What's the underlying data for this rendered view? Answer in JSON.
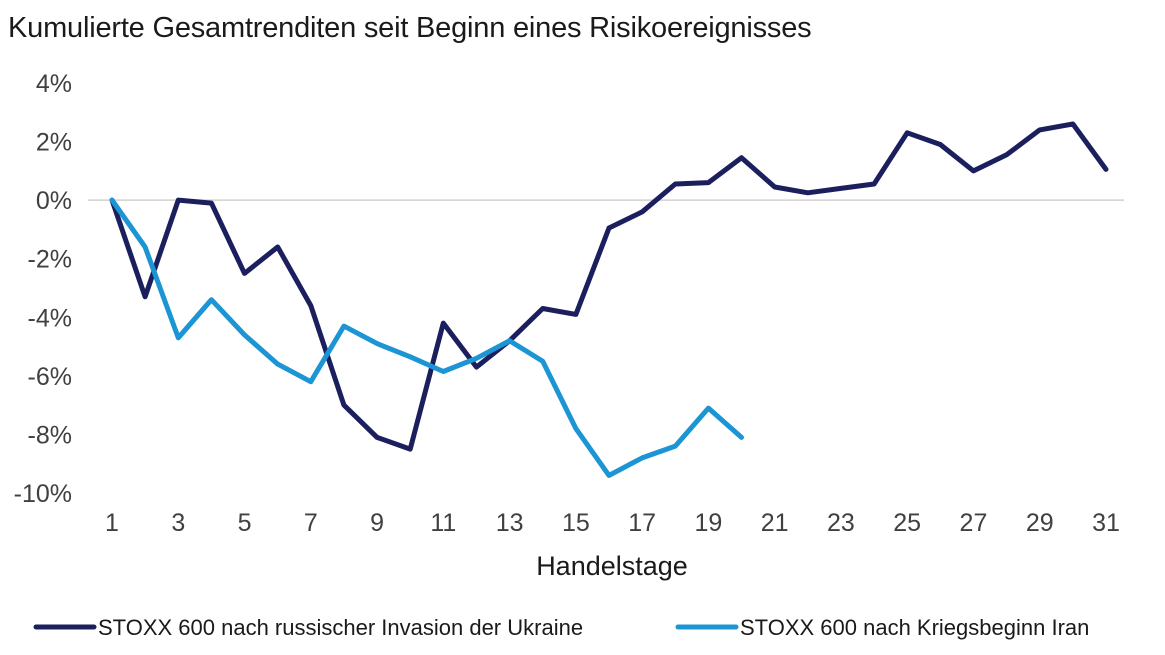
{
  "chart_data": {
    "type": "line",
    "title": "Kumulierte Gesamtrenditen seit Beginn eines Risikoereignisses",
    "xlabel": "Handelstage",
    "ylabel": "",
    "x_ticks": [
      1,
      3,
      5,
      7,
      9,
      11,
      13,
      15,
      17,
      19,
      21,
      23,
      25,
      27,
      29,
      31
    ],
    "y_ticks": [
      4,
      2,
      0,
      -2,
      -4,
      -6,
      -8,
      -10
    ],
    "y_tick_labels": [
      "4%",
      "2%",
      "0%",
      "-2%",
      "-4%",
      "-6%",
      "-8%",
      "-10%"
    ],
    "xlim": [
      1,
      31
    ],
    "ylim": [
      -10,
      4
    ],
    "grid": false,
    "zero_line": true,
    "legend_position": "bottom",
    "series": [
      {
        "name": "STOXX 600 nach russischer Invasion der Ukraine",
        "color": "#1b1f5e",
        "x": [
          1,
          2,
          3,
          4,
          5,
          6,
          7,
          8,
          9,
          10,
          11,
          12,
          13,
          14,
          15,
          16,
          17,
          18,
          19,
          20,
          21,
          22,
          23,
          24,
          25,
          26,
          27,
          28,
          29,
          30,
          31
        ],
        "values": [
          0,
          -3.3,
          0,
          -0.1,
          -2.5,
          -1.6,
          -3.6,
          -7.0,
          -8.1,
          -8.5,
          -4.2,
          -5.7,
          -4.8,
          -3.7,
          -3.9,
          -0.95,
          -0.4,
          0.55,
          0.6,
          1.45,
          0.45,
          0.25,
          0.4,
          0.55,
          2.3,
          1.9,
          1.0,
          1.55,
          2.4,
          2.6,
          1.05
        ]
      },
      {
        "name": "STOXX 600 nach Kriegsbeginn Iran",
        "color": "#1c95d4",
        "x": [
          1,
          2,
          3,
          4,
          5,
          6,
          7,
          8,
          9,
          10,
          11,
          12,
          13,
          14,
          15,
          16,
          17,
          18,
          19,
          20
        ],
        "values": [
          0,
          -1.6,
          -4.7,
          -3.4,
          -4.6,
          -5.6,
          -6.2,
          -4.3,
          -4.9,
          -5.35,
          -5.85,
          -5.4,
          -4.8,
          -5.5,
          -7.8,
          -9.4,
          -8.8,
          -8.4,
          -7.1,
          -8.1
        ]
      }
    ]
  }
}
